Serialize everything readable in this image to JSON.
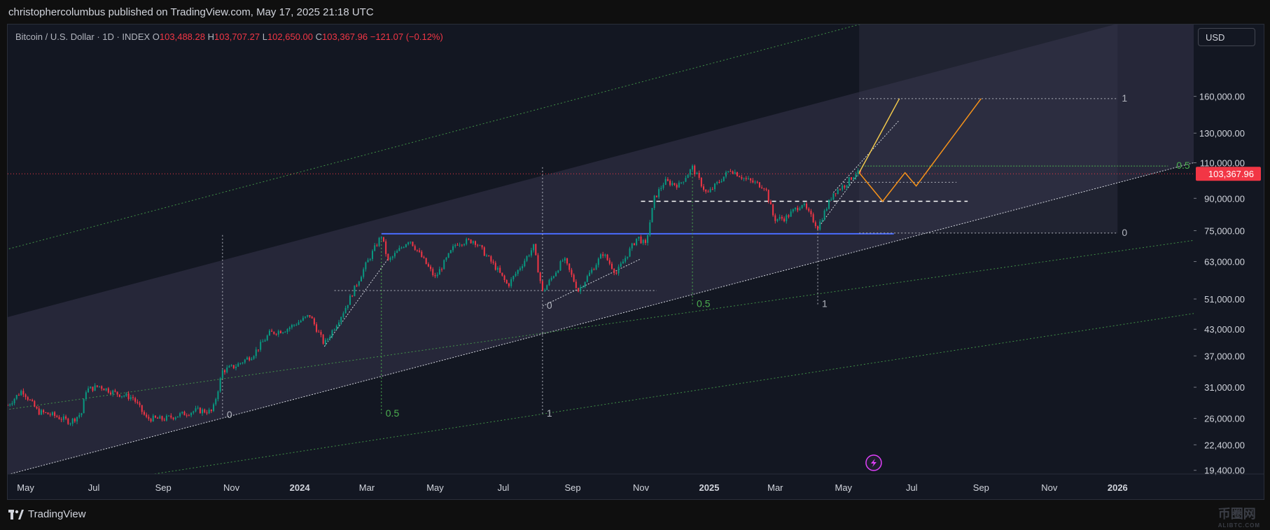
{
  "attribution": "christophercolumbus published on TradingView.com, May 17, 2025 21:18 UTC",
  "brand": "TradingView",
  "watermark": {
    "main": "币圈网",
    "sub": "ALIBTC.COM"
  },
  "legend": {
    "symbol": "Bitcoin / U.S. Dollar · 1D · INDEX",
    "o_label": "O",
    "o_value": "103,488.28",
    "h_label": "H",
    "h_value": "103,707.27",
    "l_label": "L",
    "l_value": "102,650.00",
    "c_label": "C",
    "c_value": "103,367.96",
    "change": "−121.07 (−0.12%)"
  },
  "currency_button": "USD",
  "colors": {
    "background": "#131722",
    "price_tag": "#f23645",
    "up_candle": "#089981",
    "down_candle": "#f23645",
    "support_line": "#4a6cff",
    "fib_green": "#4caf50",
    "projection_yellow": "#f2c94c",
    "projection_orange": "#f7931a",
    "flash_icon": "#e040fb"
  },
  "icons": {
    "flash": "lightning-bolt-icon",
    "logo": "tradingview-logo-icon"
  },
  "chart_data": {
    "type": "candlestick",
    "title": "Bitcoin / U.S. Dollar · 1D · INDEX",
    "y_scale": "log",
    "y_ticks": [
      "160,000.00",
      "130,000.00",
      "110,000.00",
      "90,000.00",
      "75,000.00",
      "63,000.00",
      "51,000.00",
      "43,000.00",
      "37,000.00",
      "31,000.00",
      "26,000.00",
      "22,400.00",
      "19,400.00"
    ],
    "y_tick_values": [
      160000,
      130000,
      110000,
      90000,
      75000,
      63000,
      51000,
      43000,
      37000,
      31000,
      26000,
      22400,
      19400
    ],
    "x_ticks": [
      "May",
      "Jul",
      "Sep",
      "Nov",
      "2024",
      "Mar",
      "May",
      "Jul",
      "Sep",
      "Nov",
      "2025",
      "Mar",
      "May",
      "Jul",
      "Sep",
      "Nov",
      "2026"
    ],
    "x_tick_dates": [
      "2023-05-01",
      "2023-07-01",
      "2023-09-01",
      "2023-11-01",
      "2024-01-01",
      "2024-03-01",
      "2024-05-01",
      "2024-07-01",
      "2024-09-01",
      "2024-11-01",
      "2025-01-01",
      "2025-03-01",
      "2025-05-01",
      "2025-07-01",
      "2025-09-01",
      "2025-11-01",
      "2026-01-01"
    ],
    "x_range": [
      "2023-04-15",
      "2026-03-10"
    ],
    "y_range": [
      19000,
      240000
    ],
    "last_price": "103,367.96",
    "last_price_value": 103367.96,
    "price_path": [
      [
        "2023-04-15",
        28000
      ],
      [
        "2023-04-28",
        30500
      ],
      [
        "2023-05-12",
        27000
      ],
      [
        "2023-05-25",
        26500
      ],
      [
        "2023-06-10",
        25500
      ],
      [
        "2023-06-20",
        26800
      ],
      [
        "2023-06-24",
        30500
      ],
      [
        "2023-07-06",
        31200
      ],
      [
        "2023-07-20",
        30000
      ],
      [
        "2023-08-05",
        29200
      ],
      [
        "2023-08-17",
        26000
      ],
      [
        "2023-09-01",
        25900
      ],
      [
        "2023-09-15",
        26500
      ],
      [
        "2023-10-01",
        27200
      ],
      [
        "2023-10-15",
        27000
      ],
      [
        "2023-10-24",
        34000
      ],
      [
        "2023-11-05",
        35000
      ],
      [
        "2023-11-20",
        37200
      ],
      [
        "2023-12-05",
        42000
      ],
      [
        "2023-12-20",
        43000
      ],
      [
        "2024-01-10",
        46500
      ],
      [
        "2024-01-23",
        39500
      ],
      [
        "2024-02-10",
        48000
      ],
      [
        "2024-02-28",
        61000
      ],
      [
        "2024-03-14",
        73000
      ],
      [
        "2024-03-20",
        63000
      ],
      [
        "2024-04-08",
        71500
      ],
      [
        "2024-04-20",
        64000
      ],
      [
        "2024-05-01",
        57500
      ],
      [
        "2024-05-20",
        70000
      ],
      [
        "2024-06-05",
        71000
      ],
      [
        "2024-06-25",
        60500
      ],
      [
        "2024-07-05",
        55000
      ],
      [
        "2024-07-28",
        68500
      ],
      [
        "2024-08-05",
        53000
      ],
      [
        "2024-08-24",
        64000
      ],
      [
        "2024-09-06",
        53500
      ],
      [
        "2024-09-28",
        66000
      ],
      [
        "2024-10-10",
        59000
      ],
      [
        "2024-10-29",
        72500
      ],
      [
        "2024-11-05",
        69000
      ],
      [
        "2024-11-13",
        90000
      ],
      [
        "2024-11-22",
        99000
      ],
      [
        "2024-12-05",
        97000
      ],
      [
        "2024-12-17",
        107000
      ],
      [
        "2024-12-30",
        92000
      ],
      [
        "2025-01-20",
        106000
      ],
      [
        "2025-02-03",
        100000
      ],
      [
        "2025-02-20",
        96000
      ],
      [
        "2025-02-28",
        80000
      ],
      [
        "2025-03-10",
        80500
      ],
      [
        "2025-03-25",
        87500
      ],
      [
        "2025-04-08",
        76500
      ],
      [
        "2025-04-22",
        93000
      ],
      [
        "2025-05-02",
        97000
      ],
      [
        "2025-05-12",
        104000
      ],
      [
        "2025-05-17",
        103368
      ]
    ],
    "channel": {
      "lower": [
        [
          "2023-04-01",
          18500
        ],
        [
          "2026-03-10",
          110000
        ]
      ],
      "upper": [
        [
          "2023-04-01",
          45000
        ],
        [
          "2026-03-10",
          270000
        ]
      ]
    },
    "horizontal_levels": [
      {
        "label": "",
        "value": 73700,
        "from": "2024-03-14",
        "to": "2025-06-15",
        "style": "support"
      },
      {
        "label": "1",
        "value": 158000,
        "from": "2025-05-15",
        "to": "2026-01-01",
        "style": "dotted"
      },
      {
        "label": "0.5",
        "value": 108000,
        "from": "2025-05-15",
        "to": "2026-02-15",
        "style": "green"
      },
      {
        "label": "0",
        "value": 74000,
        "from": "2025-05-15",
        "to": "2026-01-01",
        "style": "dotted"
      },
      {
        "label": "",
        "value": 88500,
        "from": "2024-11-01",
        "to": "2025-08-20",
        "style": "dashed"
      },
      {
        "label": "",
        "value": 98500,
        "from": "2025-05-01",
        "to": "2025-08-10",
        "style": "dotted"
      },
      {
        "label": "",
        "value": 53500,
        "from": "2024-02-01",
        "to": "2024-11-15",
        "style": "dotted"
      }
    ],
    "fib_markers": [
      {
        "label": "0",
        "date": "2023-10-24",
        "value": 26500
      },
      {
        "label": "0.5",
        "date": "2024-03-14",
        "value": 26700
      },
      {
        "label": "0",
        "date": "2024-08-05",
        "value": 49000
      },
      {
        "label": "1",
        "date": "2024-08-05",
        "value": 26700
      },
      {
        "label": "0.5",
        "date": "2024-12-17",
        "value": 49500
      },
      {
        "label": "1",
        "date": "2025-04-08",
        "value": 49500
      }
    ],
    "projection_yellow": [
      [
        "2025-05-15",
        104000
      ],
      [
        "2025-06-20",
        158000
      ]
    ],
    "projection_orange": [
      [
        "2025-05-15",
        104000
      ],
      [
        "2025-06-05",
        88500
      ],
      [
        "2025-06-25",
        104000
      ],
      [
        "2025-07-05",
        96500
      ],
      [
        "2025-09-01",
        158000
      ]
    ]
  }
}
